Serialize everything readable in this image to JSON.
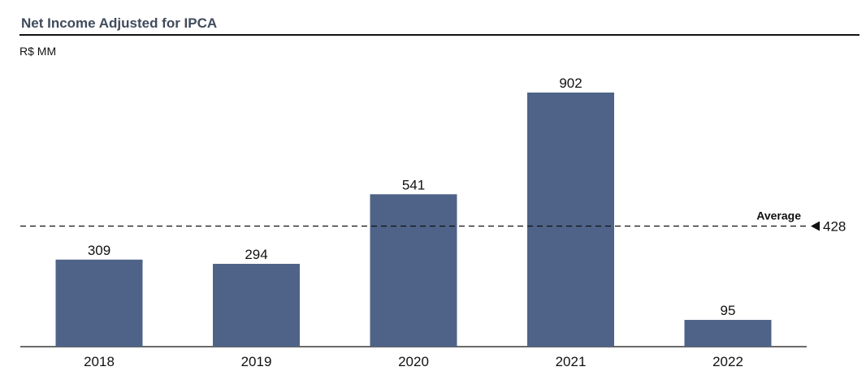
{
  "title": "Net Income Adjusted for IPCA",
  "unit": "R$ MM",
  "colors": {
    "bar": "#4f6388",
    "axis": "#111111",
    "average_line": "#111111",
    "title": "#404b5c"
  },
  "chart_data": {
    "type": "bar",
    "title": "Net Income Adjusted for IPCA",
    "xlabel": "",
    "ylabel": "R$ MM",
    "categories": [
      "2018",
      "2019",
      "2020",
      "2021",
      "2022"
    ],
    "values": [
      309,
      294,
      541,
      902,
      95
    ],
    "ylim": [
      0,
      1000
    ],
    "grid": false,
    "legend": "none",
    "average": {
      "label": "Average",
      "value": 428
    }
  }
}
